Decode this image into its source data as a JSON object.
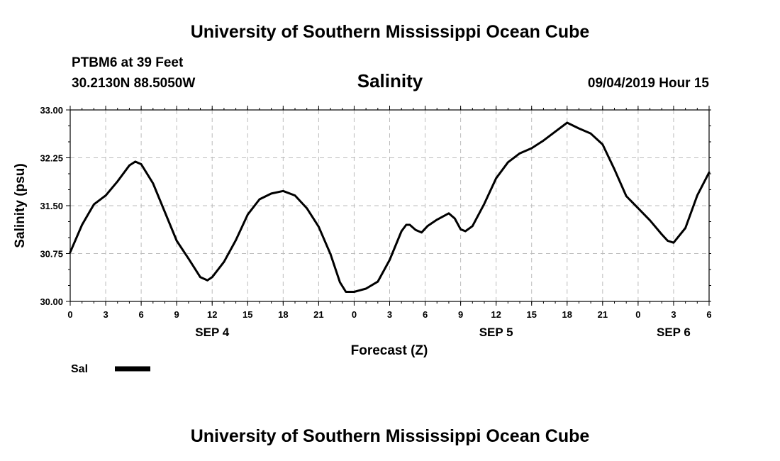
{
  "header": {
    "title": "University of Southern Mississippi Ocean Cube",
    "station": "PTBM6 at 39 Feet",
    "coords": "30.2130N 88.5050W",
    "datetime": "09/04/2019 Hour 15"
  },
  "footer": {
    "title": "University of Southern Mississippi Ocean Cube"
  },
  "chart_data": {
    "type": "line",
    "title": "Salinity",
    "xlabel": "Forecast (Z)",
    "ylabel": "Salinity (psu)",
    "ylim": [
      30.0,
      33.0
    ],
    "xlim": [
      0,
      54
    ],
    "grid": true,
    "yticks": [
      "30.00",
      "30.75",
      "31.50",
      "32.25",
      "33.00"
    ],
    "xtick_labels": [
      "0",
      "3",
      "6",
      "9",
      "12",
      "15",
      "18",
      "21",
      "0",
      "3",
      "6",
      "9",
      "12",
      "15",
      "18",
      "21",
      "0",
      "3",
      "6"
    ],
    "date_labels": [
      {
        "label": "SEP 4",
        "hour": 12
      },
      {
        "label": "SEP 5",
        "hour": 36
      },
      {
        "label": "SEP 6",
        "hour": 51
      }
    ],
    "legend": [
      {
        "name": "Sal",
        "color": "#000000"
      }
    ],
    "series": [
      {
        "name": "Sal",
        "x": [
          0,
          1,
          2,
          3,
          4,
          5,
          5.5,
          6,
          7,
          8,
          9,
          10,
          11,
          11.6,
          12,
          13,
          14,
          15,
          16,
          17,
          18,
          19,
          20,
          21,
          22,
          22.8,
          23.3,
          24,
          25,
          26,
          27,
          28,
          28.4,
          28.7,
          29.2,
          29.7,
          30.2,
          31,
          32,
          32.5,
          33,
          33.4,
          34,
          35,
          36,
          37,
          38,
          39,
          40,
          41,
          42,
          43,
          44,
          45,
          46,
          47,
          48,
          49,
          50,
          50.5,
          51,
          52,
          53,
          54
        ],
        "y": [
          30.77,
          31.2,
          31.52,
          31.66,
          31.88,
          32.13,
          32.19,
          32.15,
          31.85,
          31.4,
          30.95,
          30.67,
          30.38,
          30.33,
          30.38,
          30.62,
          30.96,
          31.36,
          31.6,
          31.69,
          31.73,
          31.66,
          31.46,
          31.17,
          30.74,
          30.3,
          30.15,
          30.15,
          30.2,
          30.31,
          30.65,
          31.1,
          31.2,
          31.2,
          31.12,
          31.08,
          31.18,
          31.28,
          31.38,
          31.3,
          31.13,
          31.1,
          31.18,
          31.53,
          31.93,
          32.18,
          32.32,
          32.4,
          32.52,
          32.66,
          32.8,
          32.71,
          32.63,
          32.46,
          32.07,
          31.65,
          31.46,
          31.27,
          31.05,
          30.95,
          30.92,
          31.15,
          31.66,
          32.02
        ]
      }
    ]
  }
}
